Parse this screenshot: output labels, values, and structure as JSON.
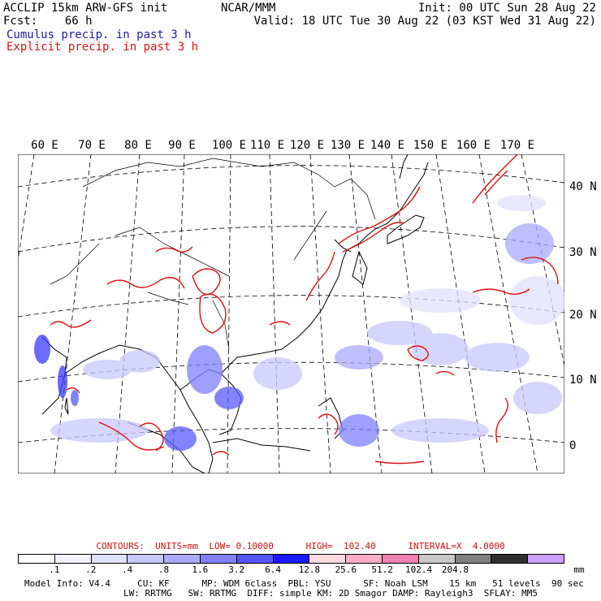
{
  "header": {
    "title_left": "ACCLIP 15km ARW-GFS init",
    "fcst_label": "Fcst:    66 h",
    "center": "NCAR/MMM",
    "init": "Init: 00 UTC Sun 28 Aug 22",
    "valid": "Valid: 18 UTC Tue 30 Aug 22 (03 KST Wed 31 Aug 22)",
    "legend_cumulus": "Cumulus precip. in past 3 h",
    "legend_explicit": "Explicit precip. in past 3 h"
  },
  "longitude_labels": [
    "60 E",
    "70 E",
    "80 E",
    "90 E",
    "100 E",
    "110 E",
    "120 E",
    "130 E",
    "140 E",
    "150 E",
    "160 E",
    "170 E"
  ],
  "latitude_labels": [
    "40 N",
    "30 N",
    "20 N",
    "10 N",
    "0"
  ],
  "contours_line": "CONTOURS:  UNITS=mm  LOW= 0.10000      HIGH=  102.40      INTERVAL=X  4.0000",
  "colorbar": {
    "colors": [
      "#ffffff",
      "#f2f2ff",
      "#e0e0ff",
      "#c8c8ff",
      "#aaaaff",
      "#8080ff",
      "#5555ff",
      "#1a1aff",
      "#ffd9e0",
      "#ffaec8",
      "#f080b0",
      "#c8c8c8",
      "#808080",
      "#303030",
      "#c8a0ff"
    ],
    "ticks": [
      ".1",
      ".2",
      ".4",
      ".8",
      "1.6",
      "3.2",
      "6.4",
      "12.8",
      "25.6",
      "51.2",
      "102.4",
      "204.8"
    ],
    "unit": "mm"
  },
  "model_info": {
    "line1": "Model Info: V4.4     CU: KF      MP: WDM 6class  PBL: YSU      SF: Noah LSM    15 km   51 levels  90 sec",
    "line2": "LW: RRTMG   SW: RRTMG  DIFF: simple KM: 2D Smagor DAMP: Rayleigh3  SFLAY: MM5"
  }
}
